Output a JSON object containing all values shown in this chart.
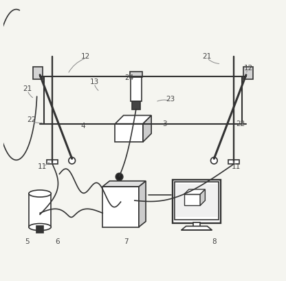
{
  "bg_color": "#f5f5f0",
  "line_color": "#333333",
  "label_color": "#444444",
  "lw": 1.2
}
